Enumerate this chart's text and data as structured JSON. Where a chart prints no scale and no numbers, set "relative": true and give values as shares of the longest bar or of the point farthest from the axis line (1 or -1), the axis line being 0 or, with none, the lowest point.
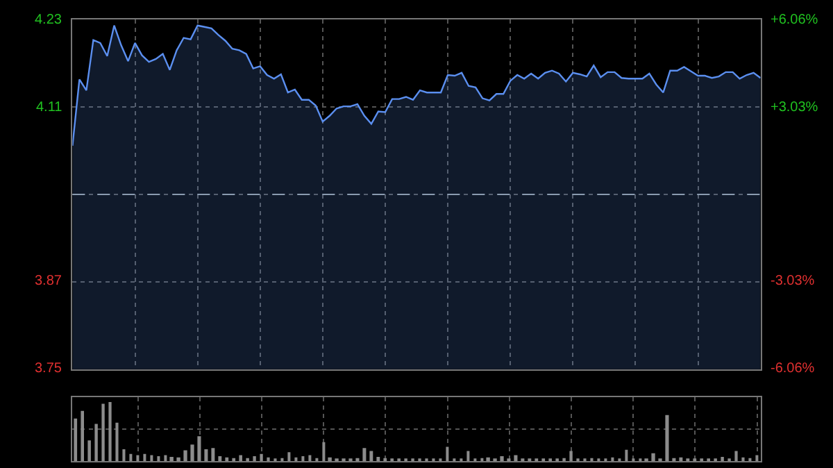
{
  "chart_data": [
    {
      "type": "area",
      "color": "#5b8ff0",
      "categories": [
        null,
        null,
        null,
        null,
        null,
        null,
        null,
        null,
        null,
        null,
        null,
        null,
        null,
        null,
        null,
        null,
        null,
        null,
        null,
        null,
        null,
        null,
        null,
        null,
        null,
        null,
        null,
        null,
        null,
        null,
        null,
        null,
        null,
        null,
        null,
        null,
        null,
        null,
        null,
        null,
        null,
        null,
        null,
        null,
        null,
        null,
        null,
        null,
        null,
        null,
        null,
        null,
        null,
        null,
        null,
        null,
        null,
        null,
        null,
        null,
        null,
        null,
        null,
        null,
        null,
        null,
        null,
        null,
        null,
        null,
        null,
        null,
        null,
        null,
        null,
        null,
        null,
        null,
        null,
        null,
        null,
        null,
        null,
        null,
        null,
        null,
        null,
        null,
        null,
        null,
        null,
        null,
        null,
        null,
        null,
        null,
        null,
        null,
        null,
        null
      ],
      "values": [
        4.057,
        4.148,
        4.133,
        4.202,
        4.198,
        4.18,
        4.222,
        4.195,
        4.173,
        4.198,
        4.181,
        4.172,
        4.176,
        4.183,
        4.161,
        4.188,
        4.205,
        4.203,
        4.222,
        4.22,
        4.218,
        4.209,
        4.201,
        4.19,
        4.188,
        4.183,
        4.163,
        4.166,
        4.154,
        4.149,
        4.155,
        4.13,
        4.134,
        4.12,
        4.12,
        4.112,
        4.09,
        4.098,
        4.108,
        4.111,
        4.111,
        4.114,
        4.098,
        4.087,
        4.104,
        4.103,
        4.121,
        4.121,
        4.124,
        4.12,
        4.133,
        4.13,
        4.13,
        4.13,
        4.154,
        4.153,
        4.157,
        4.139,
        4.137,
        4.122,
        4.119,
        4.128,
        4.128,
        4.146,
        4.154,
        4.149,
        4.156,
        4.149,
        4.157,
        4.16,
        4.156,
        4.145,
        4.157,
        4.155,
        4.152,
        4.167,
        4.151,
        4.158,
        4.158,
        4.15,
        4.149,
        4.149,
        4.149,
        4.156,
        4.141,
        4.13,
        4.16,
        4.16,
        4.165,
        4.159,
        4.153,
        4.153,
        4.15,
        4.152,
        4.158,
        4.158,
        4.149,
        4.154,
        4.157,
        4.15
      ],
      "ylim": [
        3.75,
        4.23
      ],
      "yticks": [
        3.75,
        3.87,
        {
          "value": 3.99,
          "label": null
        },
        4.11,
        4.23
      ],
      "y2lim": [
        -6.06,
        6.06
      ],
      "y2ticks": [
        {
          "value": -6.06,
          "label": "-6.06%"
        },
        {
          "value": -3.03,
          "label": "-3.03%"
        },
        {
          "value": 3.03,
          "label": "+3.03%"
        },
        {
          "value": 6.06,
          "label": "+6.06%"
        }
      ],
      "ref_lines": [
        {
          "axis": "y",
          "value": 3.99,
          "color": "#8a9bb0",
          "line_style": "dashed"
        }
      ],
      "grid": true,
      "legend": false,
      "tick_labels": "y"
    },
    {
      "type": "bar",
      "relative": true,
      "color": "#8c8c8c",
      "grid": true,
      "legend": false,
      "tick_labels": false,
      "categories": [
        null,
        null,
        null,
        null,
        null,
        null,
        null,
        null,
        null,
        null,
        null,
        null,
        null,
        null,
        null,
        null,
        null,
        null,
        null,
        null,
        null,
        null,
        null,
        null,
        null,
        null,
        null,
        null,
        null,
        null,
        null,
        null,
        null,
        null,
        null,
        null,
        null,
        null,
        null,
        null,
        null,
        null,
        null,
        null,
        null,
        null,
        null,
        null,
        null,
        null,
        null,
        null,
        null,
        null,
        null,
        null,
        null,
        null,
        null,
        null,
        null,
        null,
        null,
        null,
        null,
        null,
        null,
        null,
        null,
        null,
        null,
        null,
        null,
        null,
        null,
        null,
        null,
        null,
        null,
        null,
        null,
        null,
        null,
        null,
        null,
        null,
        null,
        null,
        null,
        null,
        null,
        null,
        null,
        null,
        null,
        null,
        null,
        null,
        null,
        null
      ],
      "values": [
        0.72,
        0.85,
        0.35,
        0.63,
        0.97,
        1.0,
        0.65,
        0.2,
        0.12,
        0.1,
        0.12,
        0.1,
        0.08,
        0.1,
        0.07,
        0.06,
        0.18,
        0.28,
        0.42,
        0.2,
        0.22,
        0.08,
        0.06,
        0.05,
        0.1,
        0.05,
        0.08,
        0.12,
        0.06,
        0.04,
        0.05,
        0.15,
        0.06,
        0.08,
        0.1,
        0.05,
        0.32,
        0.06,
        0.04,
        0.03,
        0.04,
        0.05,
        0.22,
        0.17,
        0.07,
        0.05,
        0.04,
        0.03,
        0.04,
        0.03,
        0.03,
        0.02,
        0.03,
        0.03,
        0.24,
        0.03,
        0.04,
        0.17,
        0.04,
        0.05,
        0.06,
        0.04,
        0.08,
        0.04,
        0.1,
        0.03,
        0.02,
        0.03,
        0.03,
        0.04,
        0.03,
        0.05,
        0.17,
        0.04,
        0.03,
        0.05,
        0.02,
        0.03,
        0.06,
        0.04,
        0.19,
        0.03,
        0.02,
        0.03,
        0.13,
        0.03,
        0.78,
        0.05,
        0.06,
        0.03,
        0.02,
        0.03,
        0.04,
        0.03,
        0.07,
        0.04,
        0.17,
        0.06,
        0.05,
        0.1
      ]
    }
  ]
}
